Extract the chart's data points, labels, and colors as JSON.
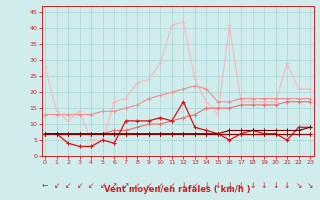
{
  "x": [
    0,
    1,
    2,
    3,
    4,
    5,
    6,
    7,
    8,
    9,
    10,
    11,
    12,
    13,
    14,
    15,
    16,
    17,
    18,
    19,
    20,
    21,
    22,
    23
  ],
  "series": [
    {
      "name": "line1_lightest",
      "color": "#f9b8b8",
      "lw": 0.8,
      "marker": "+",
      "ms": 3,
      "mew": 0.7,
      "y": [
        28,
        14,
        11,
        14,
        5,
        5,
        17,
        18,
        23,
        24,
        29,
        41,
        42,
        24,
        17,
        13,
        41,
        17,
        17,
        17,
        17,
        29,
        21,
        21
      ]
    },
    {
      "name": "line2_light",
      "color": "#f09090",
      "lw": 0.8,
      "marker": "+",
      "ms": 3,
      "mew": 0.7,
      "y": [
        13,
        13,
        13,
        13,
        13,
        14,
        14,
        15,
        16,
        18,
        19,
        20,
        21,
        22,
        21,
        17,
        17,
        18,
        18,
        18,
        18,
        18,
        18,
        18
      ]
    },
    {
      "name": "line3_medium",
      "color": "#e87070",
      "lw": 0.8,
      "marker": "+",
      "ms": 3,
      "mew": 0.7,
      "y": [
        7,
        7,
        7,
        7,
        7,
        7,
        8,
        8,
        9,
        10,
        10,
        11,
        12,
        13,
        15,
        15,
        15,
        16,
        16,
        16,
        16,
        17,
        17,
        17
      ]
    },
    {
      "name": "line4_red_jagged",
      "color": "#dd1111",
      "lw": 0.9,
      "marker": "+",
      "ms": 3,
      "mew": 0.8,
      "y": [
        7,
        7,
        4,
        3,
        3,
        5,
        4,
        11,
        11,
        11,
        12,
        11,
        17,
        9,
        8,
        7,
        5,
        7,
        8,
        7,
        7,
        5,
        9,
        9
      ]
    },
    {
      "name": "line5_dark_flat",
      "color": "#bb0000",
      "lw": 0.8,
      "marker": "+",
      "ms": 3,
      "mew": 0.7,
      "y": [
        7,
        7,
        7,
        7,
        7,
        7,
        7,
        7,
        7,
        7,
        7,
        7,
        7,
        7,
        7,
        7,
        7,
        7,
        7,
        7,
        7,
        7,
        7,
        7
      ]
    },
    {
      "name": "line6_dark_flat2",
      "color": "#990000",
      "lw": 0.8,
      "marker": "+",
      "ms": 3,
      "mew": 0.7,
      "y": [
        7,
        7,
        7,
        7,
        7,
        7,
        7,
        7,
        7,
        7,
        7,
        7,
        7,
        7,
        7,
        7,
        7,
        7,
        7,
        7,
        7,
        7,
        7,
        7
      ]
    },
    {
      "name": "line7_darkest",
      "color": "#770000",
      "lw": 0.8,
      "marker": "+",
      "ms": 3,
      "mew": 0.7,
      "y": [
        7,
        7,
        7,
        7,
        7,
        7,
        7,
        7,
        7,
        7,
        7,
        7,
        7,
        7,
        7,
        7,
        8,
        8,
        8,
        8,
        8,
        8,
        8,
        9
      ]
    }
  ],
  "xlim": [
    -0.3,
    23.3
  ],
  "ylim": [
    0,
    47
  ],
  "yticks": [
    0,
    5,
    10,
    15,
    20,
    25,
    30,
    35,
    40,
    45
  ],
  "xticks": [
    0,
    1,
    2,
    3,
    4,
    5,
    6,
    7,
    8,
    9,
    10,
    11,
    12,
    13,
    14,
    15,
    16,
    17,
    18,
    19,
    20,
    21,
    22,
    23
  ],
  "xlabel": "Vent moyen/en rafales ( km/h )",
  "bg_color": "#d0ecec",
  "grid_color": "#a8d4d4",
  "spine_color": "#cc2222",
  "tick_color": "#cc2222",
  "xlabel_color": "#cc2222",
  "arrows": [
    "←",
    "↙",
    "↙",
    "↙",
    "↙",
    "↙",
    "↗",
    "↗",
    "↙",
    "↙",
    "↙",
    "↙",
    "↓",
    "↙",
    "↓",
    "↓",
    "↓",
    "↓",
    "↓",
    "↓",
    "↓",
    "↓",
    "↘",
    "↘"
  ]
}
